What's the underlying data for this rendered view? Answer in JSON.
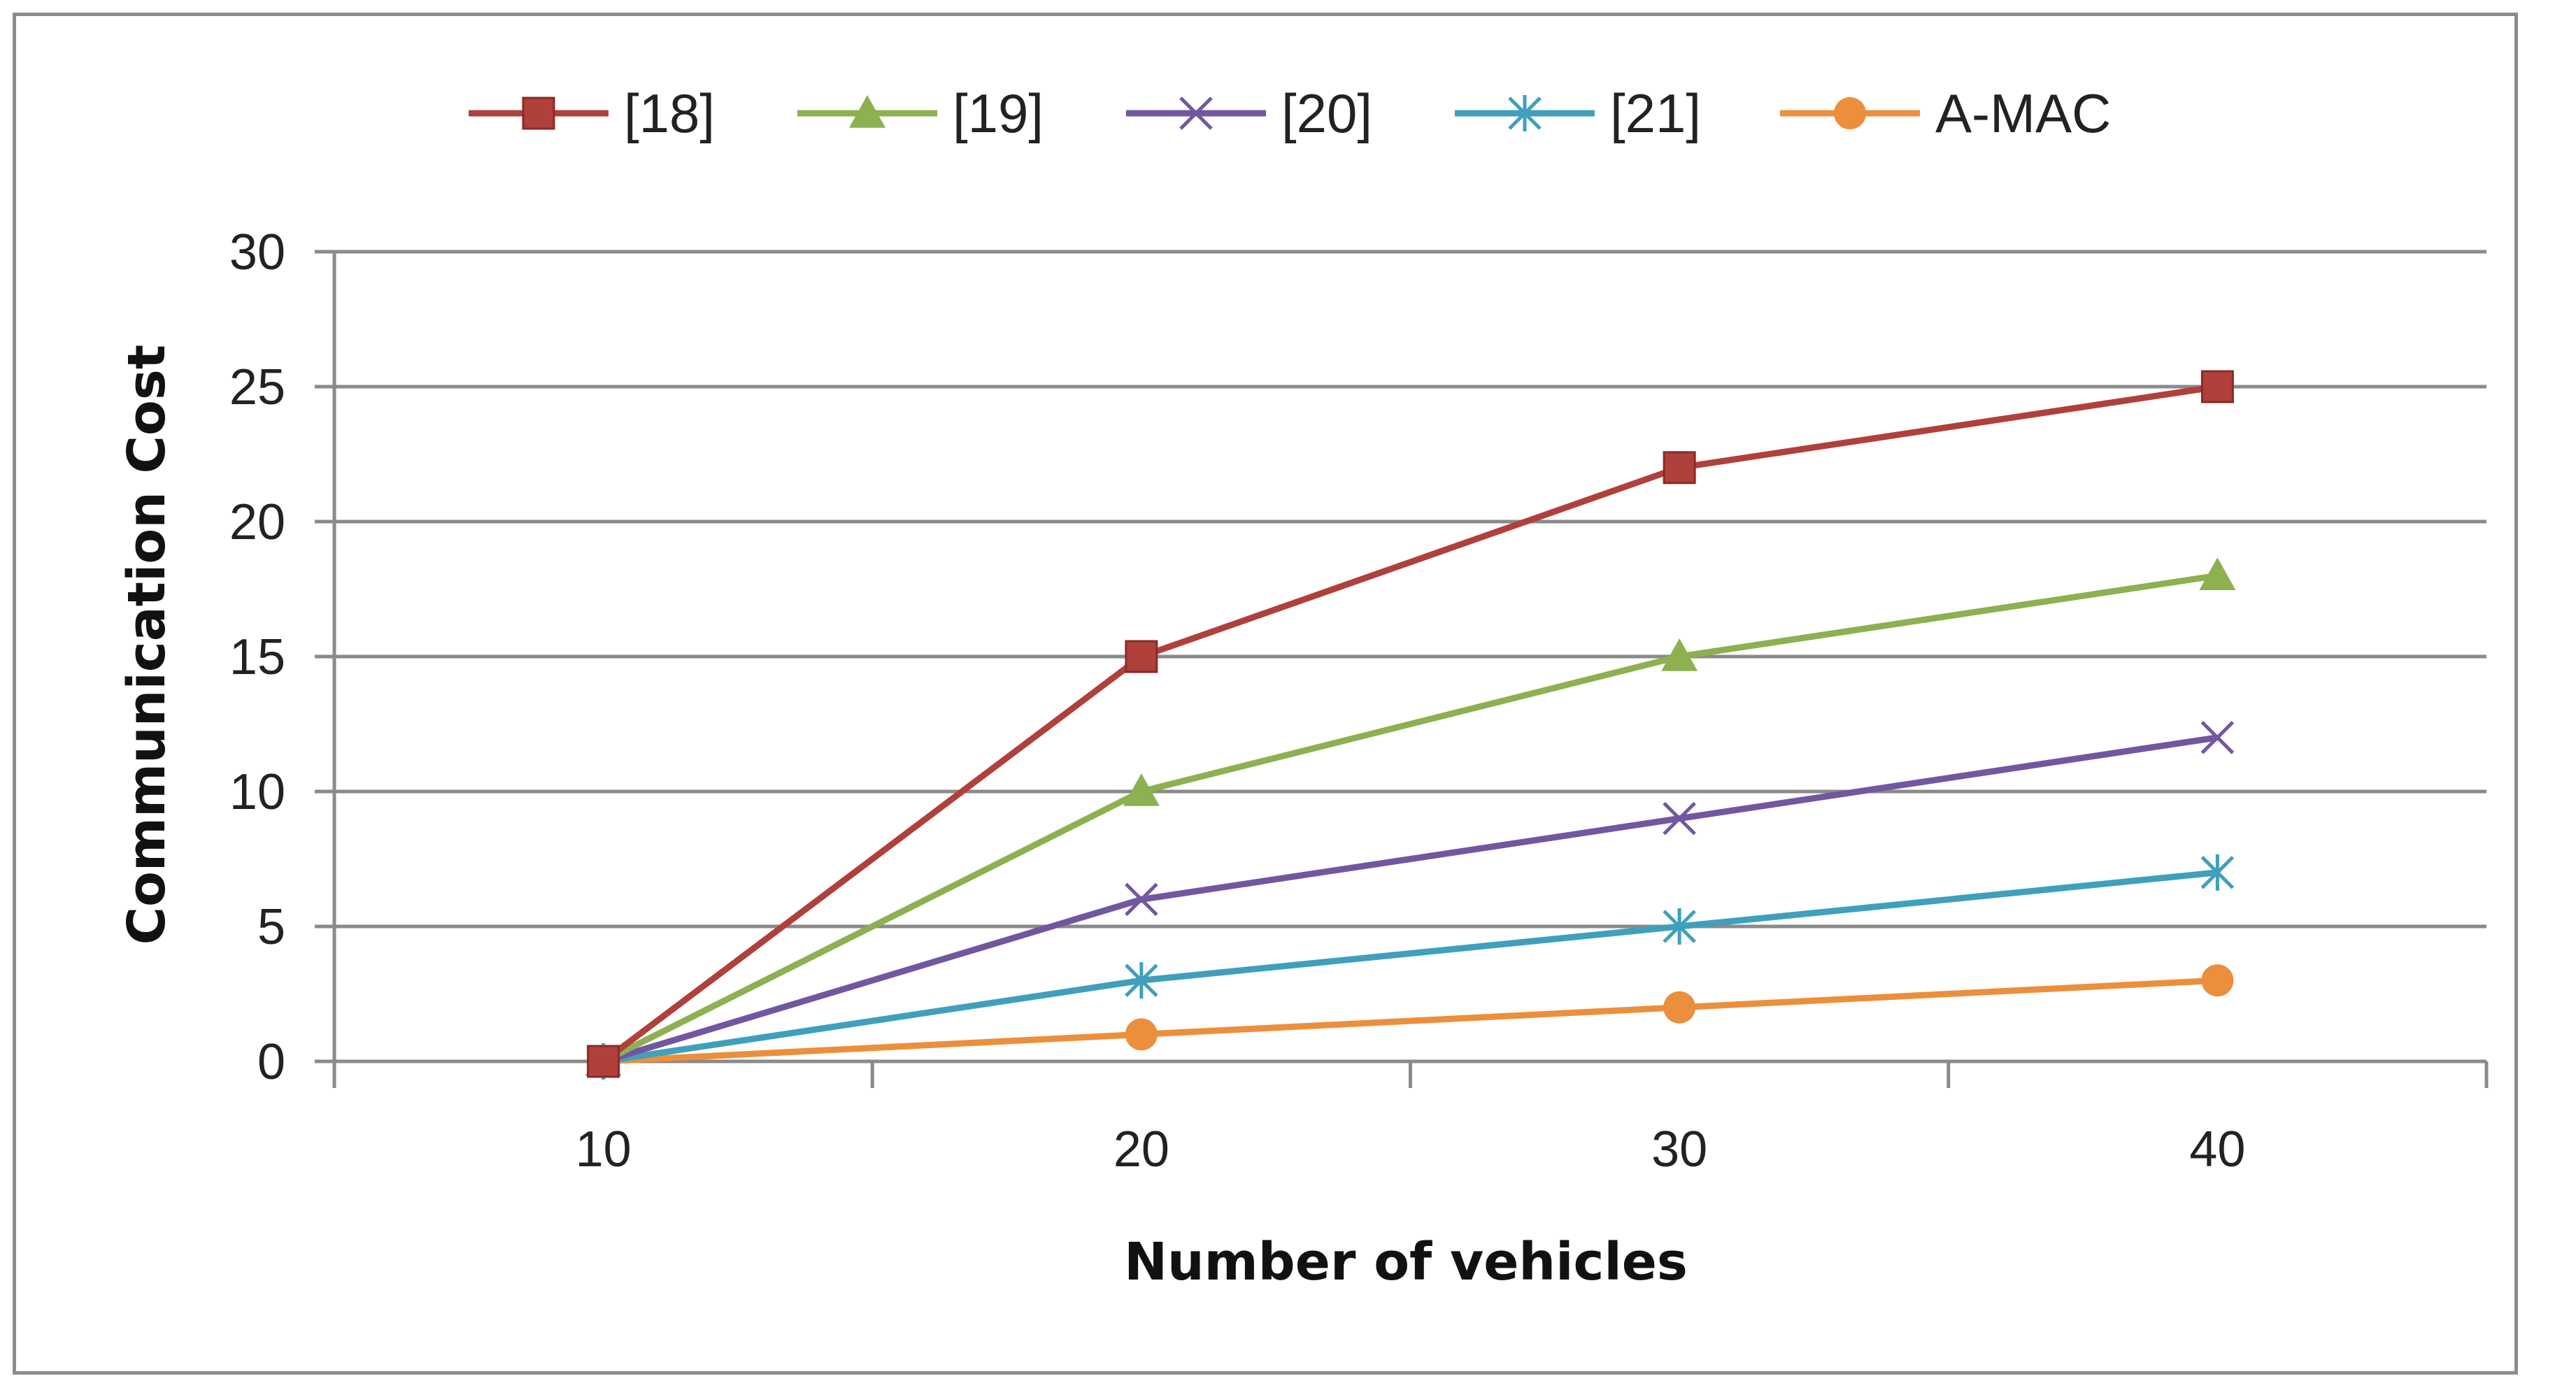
{
  "chart_data": {
    "type": "line",
    "title": "",
    "xlabel": "Number of vehicles",
    "ylabel": "Communication Cost",
    "categories": [
      "10",
      "20",
      "30",
      "40"
    ],
    "ylim": [
      0,
      30
    ],
    "yticks": [
      "0",
      "5",
      "10",
      "15",
      "20",
      "25",
      "30"
    ],
    "grid": "horizontal",
    "legend_position": "top",
    "series": [
      {
        "name": "[18]",
        "values": [
          0,
          15,
          22,
          25
        ],
        "color": "#b0403a",
        "marker": "square"
      },
      {
        "name": "[19]",
        "values": [
          0,
          10,
          15,
          18
        ],
        "color": "#8db050",
        "marker": "triangle"
      },
      {
        "name": "[20]",
        "values": [
          0,
          6,
          9,
          12
        ],
        "color": "#7356a0",
        "marker": "x"
      },
      {
        "name": "[21]",
        "values": [
          0,
          3,
          5,
          7
        ],
        "color": "#3fa0bc",
        "marker": "star"
      },
      {
        "name": "A-MAC",
        "values": [
          0,
          1,
          2,
          3
        ],
        "color": "#ec8f3c",
        "marker": "circle"
      }
    ]
  }
}
